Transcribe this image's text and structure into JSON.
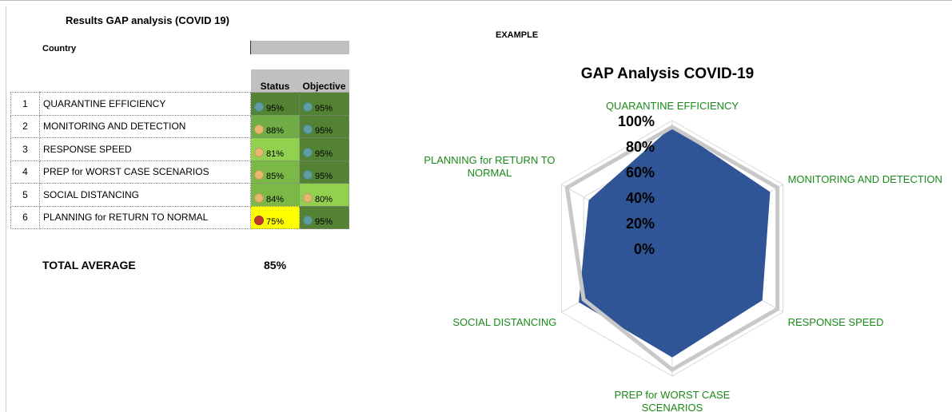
{
  "header": {
    "title": "Results GAP analysis (COVID 19)",
    "country_label": "Country",
    "example": "EXAMPLE"
  },
  "table": {
    "columns": [
      "Status",
      "Objective"
    ],
    "rows": [
      {
        "no": "1",
        "label": "QUARANTINE EFFICIENCY",
        "status": "95%",
        "objective": "95%",
        "status_fill": "#548235",
        "status_dot": "#5f9ea0",
        "objective_fill": "#548235",
        "objective_dot": "#5f9ea0"
      },
      {
        "no": "2",
        "label": "MONITORING AND DETECTION",
        "status": "88%",
        "objective": "95%",
        "status_fill": "#70ad47",
        "status_dot": "#e6b870",
        "objective_fill": "#548235",
        "objective_dot": "#5f9ea0"
      },
      {
        "no": "3",
        "label": "RESPONSE SPEED",
        "status": "81%",
        "objective": "95%",
        "status_fill": "#92d050",
        "status_dot": "#e6b870",
        "objective_fill": "#548235",
        "objective_dot": "#5f9ea0"
      },
      {
        "no": "4",
        "label": "PREP for WORST CASE SCENARIOS",
        "status": "85%",
        "objective": "95%",
        "status_fill": "#7cb848",
        "status_dot": "#e6b870",
        "objective_fill": "#548235",
        "objective_dot": "#5f9ea0"
      },
      {
        "no": "5",
        "label": "SOCIAL DISTANCING",
        "status": "84%",
        "objective": "80%",
        "status_fill": "#7cb848",
        "status_dot": "#e6b870",
        "objective_fill": "#92d050",
        "objective_dot": "#e6b870"
      },
      {
        "no": "6",
        "label": "PLANNING for RETURN TO NORMAL",
        "status": "75%",
        "objective": "95%",
        "status_fill": "#ffff00",
        "status_dot": "#c0392b",
        "objective_fill": "#548235",
        "objective_dot": "#5f9ea0"
      }
    ],
    "total_label": "TOTAL AVERAGE",
    "total_value": "85%"
  },
  "chart_data": {
    "type": "radar",
    "title": "GAP Analysis COVID-19",
    "categories": [
      "QUARANTINE EFFICIENCY",
      "MONITORING AND DETECTION",
      "RESPONSE SPEED",
      "PREP for WORST CASE SCENARIOS",
      "SOCIAL DISTANCING",
      "PLANNING for RETURN TO NORMAL"
    ],
    "series": [
      {
        "name": "Status",
        "color": "#2f5597",
        "values": [
          95,
          88,
          81,
          85,
          84,
          75
        ]
      },
      {
        "name": "Objective",
        "color": "#c8c8c8",
        "values": [
          95,
          95,
          95,
          95,
          80,
          95
        ]
      }
    ],
    "rlim": [
      0,
      100
    ],
    "rticks": [
      {
        "value": 0,
        "label": "0%"
      },
      {
        "value": 20,
        "label": "20%"
      },
      {
        "value": 40,
        "label": "40%"
      },
      {
        "value": 60,
        "label": "60%"
      },
      {
        "value": 80,
        "label": "80%"
      },
      {
        "value": 100,
        "label": "100%"
      }
    ],
    "label_color": "#1a8a1a",
    "grid": true
  }
}
